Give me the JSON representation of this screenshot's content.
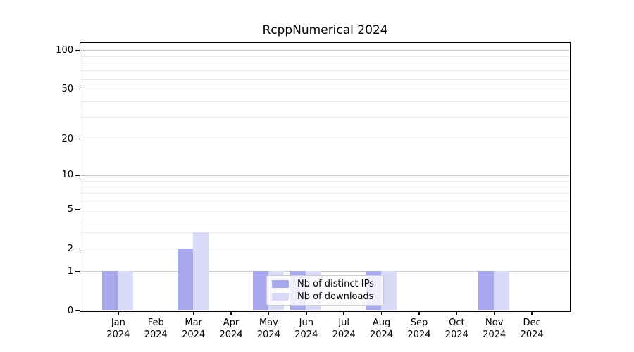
{
  "chart_data": {
    "type": "bar",
    "title": "RcppNumerical 2024",
    "categories": [
      "Jan",
      "Feb",
      "Mar",
      "Apr",
      "May",
      "Jun",
      "Jul",
      "Aug",
      "Sep",
      "Oct",
      "Nov",
      "Dec"
    ],
    "category_year": "2024",
    "series": [
      {
        "name": "Nb of distinct IPs",
        "color": "#a8a8ee",
        "values": [
          1,
          0,
          2,
          0,
          1,
          1,
          0,
          1,
          0,
          0,
          1,
          0
        ]
      },
      {
        "name": "Nb of downloads",
        "color": "#d9d9f8",
        "values": [
          1,
          0,
          3,
          0,
          1,
          1,
          0,
          1,
          0,
          0,
          1,
          0
        ]
      }
    ],
    "yscale": "log1p",
    "ylim": [
      0,
      114
    ],
    "yticks": [
      0,
      1,
      2,
      5,
      10,
      20,
      50,
      100
    ],
    "minor_yticks": [
      3,
      4,
      6,
      7,
      8,
      9,
      30,
      40,
      60,
      70,
      80,
      90
    ],
    "grid": "horizontal",
    "legend_position": "lower center, inside plot, overlapping bars"
  },
  "colors": {
    "major_grid": "#c9c9c9",
    "minor_grid": "#eaeaea",
    "spine": "#000000",
    "legend_border": "#cccccc"
  }
}
